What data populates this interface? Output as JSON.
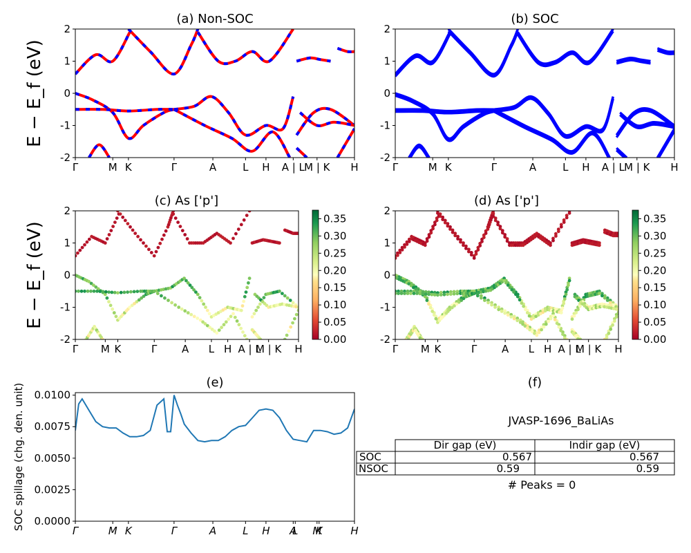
{
  "chart_data": [
    {
      "id": "a",
      "type": "line",
      "title": "(a) Non-SOC",
      "ylabel": "E − E_f (eV)",
      "ylim": [
        -2,
        2
      ],
      "yticks": [
        -2,
        -1,
        0,
        1,
        2
      ],
      "xticks": [
        "Γ",
        "M",
        "K",
        "Γ",
        "A",
        "L",
        "H",
        "A | L",
        "M | K",
        "H"
      ],
      "x_scale": [
        0,
        0.55,
        0.78,
        1.45,
        2.02,
        2.5,
        2.8,
        3.2,
        3.55,
        4.1
      ],
      "series": [
        {
          "role": "spin-up",
          "color": "#0000ff",
          "bands": [
            [
              [
                0,
                0.6
              ],
              [
                0.3,
                1.2
              ],
              [
                0.55,
                1.0
              ],
              [
                0.8,
                1.9
              ]
            ],
            [
              [
                0.78,
                2.0
              ],
              [
                1.1,
                1.3
              ],
              [
                1.45,
                0.6
              ],
              [
                1.7,
                1.5
              ],
              [
                1.8,
                2.0
              ]
            ],
            [
              [
                1.8,
                1.9
              ],
              [
                2.1,
                1.0
              ],
              [
                2.35,
                1.0
              ],
              [
                2.6,
                1.3
              ],
              [
                2.85,
                1.0
              ],
              [
                3.2,
                2.0
              ]
            ],
            [
              [
                3.25,
                1.0
              ],
              [
                3.45,
                1.1
              ],
              [
                3.6,
                1.05
              ],
              [
                3.75,
                1.0
              ]
            ],
            [
              [
                3.85,
                1.4
              ],
              [
                4.0,
                1.3
              ],
              [
                4.1,
                1.3
              ]
            ],
            [
              [
                0,
                0.0
              ],
              [
                0.25,
                -0.2
              ],
              [
                0.55,
                -0.6
              ],
              [
                0.78,
                -1.4
              ],
              [
                1.0,
                -1.0
              ],
              [
                1.3,
                -0.6
              ],
              [
                1.45,
                -0.5
              ]
            ],
            [
              [
                0,
                -0.5
              ],
              [
                0.4,
                -0.5
              ],
              [
                0.78,
                -0.55
              ],
              [
                1.2,
                -0.5
              ],
              [
                1.45,
                -0.5
              ]
            ],
            [
              [
                1.45,
                -0.5
              ],
              [
                1.75,
                -0.4
              ],
              [
                2.0,
                -0.1
              ],
              [
                2.25,
                -0.6
              ],
              [
                2.5,
                -1.3
              ],
              [
                2.8,
                -1.0
              ],
              [
                3.05,
                -1.1
              ],
              [
                3.2,
                -0.1
              ]
            ],
            [
              [
                1.45,
                -0.5
              ],
              [
                1.9,
                -1.0
              ],
              [
                2.3,
                -1.4
              ],
              [
                2.6,
                -1.8
              ],
              [
                2.9,
                -1.2
              ],
              [
                3.15,
                -2.0
              ]
            ],
            [
              [
                3.25,
                -1.3
              ],
              [
                3.5,
                -0.6
              ],
              [
                3.75,
                -0.5
              ],
              [
                4.1,
                -1.0
              ]
            ],
            [
              [
                3.3,
                -0.6
              ],
              [
                3.55,
                -1.0
              ],
              [
                3.8,
                -0.9
              ],
              [
                4.1,
                -1.0
              ]
            ],
            [
              [
                3.25,
                -1.7
              ],
              [
                3.4,
                -2.0
              ]
            ],
            [
              [
                3.85,
                -2.0
              ],
              [
                4.1,
                -1.1
              ]
            ],
            [
              [
                0.2,
                -2.0
              ],
              [
                0.35,
                -1.6
              ],
              [
                0.5,
                -2.0
              ]
            ]
          ]
        },
        {
          "role": "spin-down",
          "color": "#ff0000",
          "bands": "same"
        }
      ]
    },
    {
      "id": "b",
      "type": "line",
      "title": "(b) SOC",
      "ylim": [
        -2,
        2
      ],
      "yticks": [
        -2,
        -1,
        0,
        1,
        2
      ],
      "xticks": [
        "Γ",
        "M",
        "K",
        "Γ",
        "A",
        "L",
        "H",
        "A | L",
        "M | K",
        "H"
      ],
      "color": "#0000ff"
    },
    {
      "id": "c",
      "type": "scatter",
      "title": "(c)  As ['p']",
      "ylabel": "E − E_f (eV)",
      "ylim": [
        -2,
        2
      ],
      "yticks": [
        -2,
        -1,
        0,
        1,
        2
      ],
      "xticks": [
        "Γ",
        "M",
        "K",
        "Γ",
        "A",
        "L",
        "H",
        "A | L",
        "M | K",
        "H"
      ],
      "colorbar": {
        "min": 0,
        "max": 0.375,
        "ticks": [
          "0.00",
          "0.05",
          "0.10",
          "0.15",
          "0.20",
          "0.25",
          "0.30",
          "0.35"
        ]
      }
    },
    {
      "id": "d",
      "type": "scatter",
      "title": "(d) As ['p']",
      "ylim": [
        -2,
        2
      ],
      "yticks": [
        -2,
        -1,
        0,
        1,
        2
      ],
      "xticks": [
        "Γ",
        "M",
        "K",
        "Γ",
        "A",
        "L",
        "H",
        "A | L",
        "M | K",
        "H"
      ],
      "colorbar": {
        "min": 0,
        "max": 0.375,
        "ticks": [
          "0.00",
          "0.05",
          "0.10",
          "0.15",
          "0.20",
          "0.25",
          "0.30",
          "0.35"
        ]
      }
    },
    {
      "id": "e",
      "type": "line",
      "title": "(e)",
      "ylabel": "SOC spillage (chg. den. unit)",
      "ylim": [
        0,
        0.0102
      ],
      "yticks": [
        "0.0000",
        "0.0025",
        "0.0050",
        "0.0075",
        "0.0100"
      ],
      "xticks": [
        "Γ",
        "M",
        "K",
        "Γ",
        "A",
        "L",
        "H",
        "A",
        "L",
        "M",
        "K",
        "H"
      ],
      "x": [
        0,
        0.05,
        0.1,
        0.2,
        0.3,
        0.4,
        0.5,
        0.6,
        0.7,
        0.8,
        0.9,
        1.0,
        1.1,
        1.2,
        1.3,
        1.35,
        1.4,
        1.45,
        1.5,
        1.55,
        1.6,
        1.7,
        1.8,
        1.9,
        2.0,
        2.1,
        2.2,
        2.3,
        2.4,
        2.5,
        2.6,
        2.7,
        2.8,
        2.9,
        3.0,
        3.1,
        3.2,
        3.3,
        3.4,
        3.5,
        3.6,
        3.7,
        3.8,
        3.9,
        4.0,
        4.1
      ],
      "y": [
        0.0072,
        0.0093,
        0.0097,
        0.0088,
        0.0079,
        0.0075,
        0.0074,
        0.0074,
        0.007,
        0.0067,
        0.0067,
        0.0068,
        0.0072,
        0.0092,
        0.0097,
        0.0071,
        0.0071,
        0.01,
        0.0092,
        0.0085,
        0.0077,
        0.007,
        0.0064,
        0.0063,
        0.0064,
        0.0064,
        0.0067,
        0.0072,
        0.0075,
        0.0076,
        0.0082,
        0.0088,
        0.0089,
        0.0088,
        0.0082,
        0.0072,
        0.0065,
        0.0064,
        0.0063,
        0.0072,
        0.0072,
        0.0071,
        0.0069,
        0.007,
        0.0074,
        0.0089
      ]
    }
  ],
  "info_panel": {
    "title": "(f)",
    "material": "JVASP-1696_BaLiAs",
    "table": {
      "headers": [
        "",
        "Dir gap (eV)",
        "Indir gap (eV)"
      ],
      "rows": [
        [
          "SOC",
          "0.567",
          "0.567"
        ],
        [
          "NSOC",
          "0.59",
          "0.59"
        ]
      ]
    },
    "peaks": "# Peaks = 0"
  }
}
